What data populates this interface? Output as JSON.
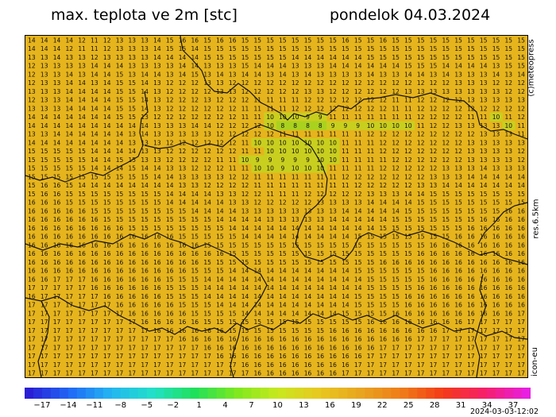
{
  "header": {
    "title": "max. teplota ve 2m [stc]",
    "date": "pondelok 04.03.2024"
  },
  "side_labels": {
    "copyright": "(c)meteopress",
    "resolution": "res.6.5km",
    "model": "icon-eu"
  },
  "colorbar": {
    "tick_labels": [
      "-17",
      "-14",
      "-11",
      "-8",
      "-5",
      "-2",
      "1",
      "4",
      "7",
      "10",
      "13",
      "16",
      "19",
      "22",
      "25",
      "28",
      "31",
      "34",
      "37"
    ],
    "min": -19,
    "max": 39,
    "stops": [
      "#2b1fd6",
      "#1f6af5",
      "#23b7f0",
      "#22e0c8",
      "#1fe05a",
      "#7de81f",
      "#c8e81f",
      "#e8c81f",
      "#e8a51f",
      "#ef7c18",
      "#f43a18",
      "#f51f6a",
      "#e81fe0"
    ]
  },
  "timestamp": "2024-03-03-12:02",
  "map": {
    "fill_color": "#e6b41c",
    "grid_rows": [
      "14 14 14 14 12 11 12 13 13 13 14 15 16 16 15 16 16 15 15 15 15 15 15 15 15 16 15 15 16 15 15 15 15 15 15 15 15 15 15 15",
      "14 14 14 12 11 11 12 13 13 13 14 15 15 14 15 15 15 15 15 15 15 15 15 15 15 15 15 15 15 15 15 15 15 15 15 15 15 15 15 15",
      "13 13 14 13 13 12 13 13 13 13 14 14 14 14 15 15 15 15 15 15 15 14 14 14 14 14 14 15 15 15 15 15 15 15 15 15 15 15 15 15",
      "12 13 13 13 13 14 14 14 13 13 13 13 14 14 13 13 13 15 14 14 14 13 13 13 14 14 14 14 14 14 15 15 15 14 14 14 14 13 15 15",
      "12 13 13 14 13 14 14 15 13 14 14 13 14 15 13 14 13 14 14 13 14 13 14 13 13 13 13 14 13 13 14 14 13 14 13 13 13 14 13 14",
      "12 13 13 14 14 13 14 15 15 14 13 12 12 12 13 13 12 12 12 12 12 12 12 12 12 12 12 12 12 12 12 12 12 12 13 13 13 12 12 12",
      "13 13 13 14 14 14 14 15 15 14 13 12 12 12 12 13 13 12 12 12 12 12 13 13 12 12 12 12 12 12 13 13 13 13 13 13 13 13 12 12",
      "12 13 13 14 14 14 14 15 15 14 13 12 12 12 13 12 12 12 11 11 11 11 12 12 12 12 12 12 12 11 11 12 12 12 12 13 13 13 13 13",
      "13 13 13 14 14 14 14 15 15 14 13 12 12 12 12 12 12 11 11 11 11 12 12 12 12 12 12 12 12 11 11 12 12 12 12 12 12 12 12 12",
      "14 14 14 14 14 14 14 15 15 13 12 12 12 12 12 12 12 11 11 10 10 10 9 9 11 11 11 11 11 11 11 12 12 12 12 11 11 10 11 12",
      "14 14 14 14 14 14 14 14 14 14 13 13 13 14 14 12 12 12 12 10 8 8 8 8 9 9 9 10 10 10 10 11 12 12 13 13 13 13 10 11",
      "13 13 14 14 14 14 14 14 13 14 13 13 13 13 13 12 12 12 12 12 11 11 11 11 11 11 11 12 12 12 12 12 12 12 12 12 13 13 13 11",
      "14 14 14 14 14 14 14 14 13 13 13 12 12 12 12 12 12 11 10 10 10 10 10 10 10 11 11 11 12 12 12 12 12 12 12 13 13 13 13 13",
      "15 15 15 15 15 14 14 14 14 13 13 12 12 12 12 12 12 11 11 10 10 10 10 10 10 11 11 11 12 12 12 12 12 12 12 13 13 13 13 12",
      "15 15 15 15 15 14 14 15 15 13 13 12 12 12 12 11 11 10 9 9 9 9 9 10 10 11 11 11 11 12 12 12 12 12 12 13 13 13 13 12",
      "15 15 15 15 15 14 14 14 15 14 14 13 13 12 12 12 11 11 10 10 9 10 10 10 11 11 11 11 12 12 12 12 12 13 13 13 14 13 13 13",
      "15 15 15 15 15 15 15 15 15 15 14 14 13 13 13 13 12 12 11 11 11 11 11 11 11 12 12 12 12 12 12 12 13 13 13 14 14 14 14 14",
      "15 16 16 15 14 14 14 14 14 14 14 14 13 13 12 12 12 12 11 11 11 11 11 11 11 11 12 12 12 12 12 13 13 14 14 14 14 14 14 14",
      "15 16 16 15 15 15 15 15 15 15 15 14 14 14 14 13 13 12 12 11 11 11 12 12 12 12 12 13 13 13 14 14 15 15 15 15 15 15 15 15",
      "16 16 16 15 15 15 15 15 15 15 15 14 14 14 14 14 13 13 12 12 12 12 12 13 13 13 13 14 14 14 14 15 15 15 15 15 15 15 15 15",
      "16 16 16 16 16 15 15 15 15 15 15 15 15 14 14 14 14 13 13 13 13 13 13 13 13 14 14 14 14 14 15 15 15 15 15 15 15 15 16 16",
      "16 16 16 16 16 16 15 15 15 15 15 15 15 15 15 14 14 14 14 13 13 13 13 13 14 14 14 14 14 15 15 15 15 15 15 15 16 16 16 16",
      "16 16 16 16 16 16 16 16 15 15 15 15 15 15 15 15 14 14 14 14 14 14 14 14 14 14 14 14 15 15 15 15 15 15 15 16 16 16 16 16",
      "16 16 16 16 16 16 16 16 16 16 16 16 15 15 15 15 15 14 14 14 14 14 14 14 14 14 15 15 15 15 15 15 15 15 16 16 16 16 16 16",
      "16 16 16 16 16 16 16 16 16 16 16 16 16 16 15 15 15 15 15 15 15 15 15 15 15 15 15 15 15 15 15 15 16 16 16 16 16 16 16 16",
      "16 16 16 16 16 16 16 16 16 16 16 16 16 16 16 16 15 15 15 15 15 15 15 15 15 15 15 15 15 15 15 16 16 16 16 16 16 16 16 16",
      "16 16 16 16 16 16 16 16 16 16 16 16 16 16 15 15 15 15 15 15 15 15 15 15 15 15 15 15 16 16 16 16 16 16 16 16 16 16 16 16",
      "16 16 16 16 16 16 16 16 16 16 16 16 16 15 15 15 14 14 14 14 14 14 14 14 14 14 15 15 15 15 15 15 16 16 16 16 16 16 16 16",
      "16 16 17 17 17 16 16 16 16 16 16 15 15 15 14 14 14 14 14 14 14 14 14 14 14 14 14 15 15 15 15 15 16 16 16 16 16 16 16 16",
      "17 17 17 17 17 16 16 16 16 16 16 15 15 15 14 14 14 14 14 14 14 14 14 14 14 14 14 15 15 15 15 16 16 16 16 16 16 16 16 16",
      "16 17 17 17 17 17 16 16 16 16 16 15 15 15 14 14 14 14 14 14 14 14 14 14 14 14 15 15 15 15 16 16 16 16 16 16 16 16 16 16",
      "17 17 17 17 17 17 17 16 16 16 16 16 15 15 15 14 14 14 14 14 14 14 14 14 14 14 15 15 15 15 16 16 16 16 16 16 16 16 16 16",
      "17 17 17 17 17 17 17 17 16 16 16 16 16 15 15 15 15 14 14 14 14 14 14 14 14 15 15 15 15 16 16 16 16 16 16 16 16 16 16 17",
      "17 17 17 17 17 17 17 17 17 16 16 16 16 16 15 15 15 15 15 15 15 15 15 15 15 15 15 16 16 16 16 16 16 16 16 17 17 17 17 17",
      "17 17 17 17 17 17 17 17 17 17 16 16 16 16 16 16 15 15 15 15 15 15 15 15 16 16 16 16 16 16 16 16 16 17 17 17 17 17 17 17",
      "17 17 17 17 17 17 17 17 17 17 17 17 16 16 16 16 16 16 16 16 16 16 16 16 16 16 16 16 16 16 16 17 17 17 17 17 17 17 17 17",
      "17 17 17 17 17 17 17 17 17 17 17 17 17 17 16 16 16 16 16 16 16 16 16 16 16 16 16 16 17 17 17 17 17 17 17 17 17 17 17 17",
      "17 17 17 17 17 17 17 17 17 17 17 17 17 17 17 16 16 16 16 16 16 16 16 16 16 16 16 17 17 17 17 17 17 17 17 17 17 17 17 17",
      "17 17 17 17 17 17 17 17 17 17 17 17 17 17 17 17 17 16 16 16 16 16 16 16 16 16 17 17 17 17 17 17 17 17 17 17 17 17 17 17",
      "17 17 17 17 17 17 17 17 17 17 17 17 17 17 17 17 17 17 16 16 16 16 16 16 16 17 17 17 17 17 17 17 17 17 17 17 17 17 17 17"
    ]
  }
}
